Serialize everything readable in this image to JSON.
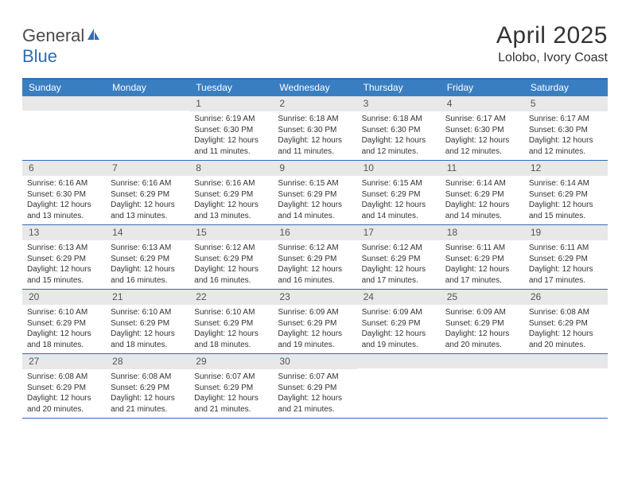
{
  "logo": {
    "word1": "General",
    "word2": "Blue"
  },
  "title": "April 2025",
  "location": "Lolobo, Ivory Coast",
  "colors": {
    "header_bg": "#3a7ec2",
    "border": "#2f6db3",
    "daynum_bg": "#e8e8e8",
    "text": "#333333",
    "logo_blue": "#2f6db3"
  },
  "daysOfWeek": [
    "Sunday",
    "Monday",
    "Tuesday",
    "Wednesday",
    "Thursday",
    "Friday",
    "Saturday"
  ],
  "leadingBlanks": 2,
  "days": [
    {
      "n": 1,
      "sunrise": "6:19 AM",
      "sunset": "6:30 PM",
      "dl": "12 hours and 11 minutes."
    },
    {
      "n": 2,
      "sunrise": "6:18 AM",
      "sunset": "6:30 PM",
      "dl": "12 hours and 11 minutes."
    },
    {
      "n": 3,
      "sunrise": "6:18 AM",
      "sunset": "6:30 PM",
      "dl": "12 hours and 12 minutes."
    },
    {
      "n": 4,
      "sunrise": "6:17 AM",
      "sunset": "6:30 PM",
      "dl": "12 hours and 12 minutes."
    },
    {
      "n": 5,
      "sunrise": "6:17 AM",
      "sunset": "6:30 PM",
      "dl": "12 hours and 12 minutes."
    },
    {
      "n": 6,
      "sunrise": "6:16 AM",
      "sunset": "6:30 PM",
      "dl": "12 hours and 13 minutes."
    },
    {
      "n": 7,
      "sunrise": "6:16 AM",
      "sunset": "6:29 PM",
      "dl": "12 hours and 13 minutes."
    },
    {
      "n": 8,
      "sunrise": "6:16 AM",
      "sunset": "6:29 PM",
      "dl": "12 hours and 13 minutes."
    },
    {
      "n": 9,
      "sunrise": "6:15 AM",
      "sunset": "6:29 PM",
      "dl": "12 hours and 14 minutes."
    },
    {
      "n": 10,
      "sunrise": "6:15 AM",
      "sunset": "6:29 PM",
      "dl": "12 hours and 14 minutes."
    },
    {
      "n": 11,
      "sunrise": "6:14 AM",
      "sunset": "6:29 PM",
      "dl": "12 hours and 14 minutes."
    },
    {
      "n": 12,
      "sunrise": "6:14 AM",
      "sunset": "6:29 PM",
      "dl": "12 hours and 15 minutes."
    },
    {
      "n": 13,
      "sunrise": "6:13 AM",
      "sunset": "6:29 PM",
      "dl": "12 hours and 15 minutes."
    },
    {
      "n": 14,
      "sunrise": "6:13 AM",
      "sunset": "6:29 PM",
      "dl": "12 hours and 16 minutes."
    },
    {
      "n": 15,
      "sunrise": "6:12 AM",
      "sunset": "6:29 PM",
      "dl": "12 hours and 16 minutes."
    },
    {
      "n": 16,
      "sunrise": "6:12 AM",
      "sunset": "6:29 PM",
      "dl": "12 hours and 16 minutes."
    },
    {
      "n": 17,
      "sunrise": "6:12 AM",
      "sunset": "6:29 PM",
      "dl": "12 hours and 17 minutes."
    },
    {
      "n": 18,
      "sunrise": "6:11 AM",
      "sunset": "6:29 PM",
      "dl": "12 hours and 17 minutes."
    },
    {
      "n": 19,
      "sunrise": "6:11 AM",
      "sunset": "6:29 PM",
      "dl": "12 hours and 17 minutes."
    },
    {
      "n": 20,
      "sunrise": "6:10 AM",
      "sunset": "6:29 PM",
      "dl": "12 hours and 18 minutes."
    },
    {
      "n": 21,
      "sunrise": "6:10 AM",
      "sunset": "6:29 PM",
      "dl": "12 hours and 18 minutes."
    },
    {
      "n": 22,
      "sunrise": "6:10 AM",
      "sunset": "6:29 PM",
      "dl": "12 hours and 18 minutes."
    },
    {
      "n": 23,
      "sunrise": "6:09 AM",
      "sunset": "6:29 PM",
      "dl": "12 hours and 19 minutes."
    },
    {
      "n": 24,
      "sunrise": "6:09 AM",
      "sunset": "6:29 PM",
      "dl": "12 hours and 19 minutes."
    },
    {
      "n": 25,
      "sunrise": "6:09 AM",
      "sunset": "6:29 PM",
      "dl": "12 hours and 20 minutes."
    },
    {
      "n": 26,
      "sunrise": "6:08 AM",
      "sunset": "6:29 PM",
      "dl": "12 hours and 20 minutes."
    },
    {
      "n": 27,
      "sunrise": "6:08 AM",
      "sunset": "6:29 PM",
      "dl": "12 hours and 20 minutes."
    },
    {
      "n": 28,
      "sunrise": "6:08 AM",
      "sunset": "6:29 PM",
      "dl": "12 hours and 21 minutes."
    },
    {
      "n": 29,
      "sunrise": "6:07 AM",
      "sunset": "6:29 PM",
      "dl": "12 hours and 21 minutes."
    },
    {
      "n": 30,
      "sunrise": "6:07 AM",
      "sunset": "6:29 PM",
      "dl": "12 hours and 21 minutes."
    }
  ],
  "labels": {
    "sunrise": "Sunrise:",
    "sunset": "Sunset:",
    "daylight": "Daylight:"
  }
}
